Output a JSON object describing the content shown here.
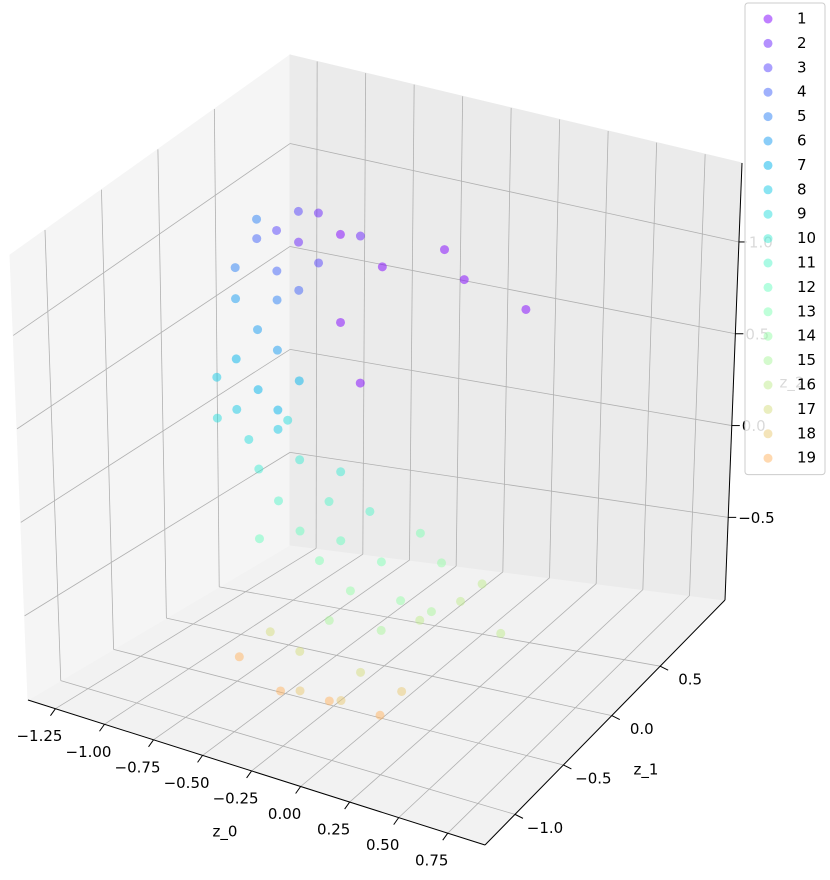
{
  "chart_data": {
    "type": "scatter3d",
    "xlabel": "z_0",
    "ylabel": "z_1",
    "zlabel": "z_2",
    "xlim": [
      -1.39,
      0.94
    ],
    "ylim": [
      -1.31,
      1.17
    ],
    "zlim": [
      -0.95,
      1.43
    ],
    "xticks": [
      {
        "value": -1.25,
        "label": "−1.25"
      },
      {
        "value": -1.0,
        "label": "−1.00"
      },
      {
        "value": -0.75,
        "label": "−0.75"
      },
      {
        "value": -0.5,
        "label": "−0.50"
      },
      {
        "value": -0.25,
        "label": "−0.25"
      },
      {
        "value": 0,
        "label": "0.00"
      },
      0.25,
      {
        "value": 0.5,
        "label": "0.50"
      },
      0.75
    ],
    "yticks": [
      {
        "value": -1.0,
        "label": "−1.0"
      },
      {
        "value": -0.5,
        "label": "−0.5"
      },
      {
        "value": 0,
        "label": "0.0"
      },
      0.5
    ],
    "zticks": [
      {
        "value": -0.5,
        "label": "−0.5"
      },
      {
        "value": 0,
        "label": "0.0"
      },
      0.5,
      {
        "value": 1.0,
        "label": "1.0"
      }
    ],
    "grid": true,
    "legend": "upper right",
    "alpha": 0.5,
    "series": [
      {
        "name": "1",
        "color": "#8000ff",
        "x": [
          -0.44,
          -0.23,
          0.08,
          0.18,
          0.49,
          -0.44,
          -0.34
        ],
        "y": [
          -0.07,
          -0.07,
          -0.07,
          -0.07,
          -0.07,
          -0.07,
          -0.07
        ],
        "z": [
          1.29,
          1.18,
          1.36,
          1.23,
          1.16,
          0.83,
          0.54
        ]
      },
      {
        "name": "2",
        "color": "#6a21fe",
        "x": [
          -0.55,
          -0.34,
          -0.65
        ],
        "y": [
          -0.07,
          -0.07,
          -0.07
        ],
        "z": [
          1.37,
          1.31,
          1.19
        ]
      },
      {
        "name": "3",
        "color": "#5542fd",
        "x": [
          -0.65,
          -0.76,
          -0.55
        ],
        "y": [
          -0.07,
          -0.07,
          -0.07
        ],
        "z": [
          1.35,
          1.22,
          1.11
        ]
      },
      {
        "name": "4",
        "color": "#4062fa",
        "x": [
          -0.86,
          -0.76,
          -0.65
        ],
        "y": [
          -0.07,
          -0.07,
          -0.07
        ],
        "z": [
          1.15,
          1.01,
          0.94
        ]
      },
      {
        "name": "5",
        "color": "#2a80f6",
        "x": [
          -0.86,
          -0.97,
          -0.76
        ],
        "y": [
          -0.07,
          -0.07,
          -0.07
        ],
        "z": [
          1.25,
          0.97,
          0.86
        ]
      },
      {
        "name": "6",
        "color": "#159bf1",
        "x": [
          -0.97,
          -0.86,
          -0.76
        ],
        "y": [
          -0.07,
          -0.07,
          -0.07
        ],
        "z": [
          0.81,
          0.68,
          0.6
        ]
      },
      {
        "name": "7",
        "color": "#00b4eb",
        "x": [
          -0.97,
          -0.86,
          -0.76,
          -0.65
        ],
        "y": [
          -0.07,
          -0.07,
          -0.07,
          -0.07
        ],
        "z": [
          0.5,
          0.37,
          0.29,
          0.47
        ]
      },
      {
        "name": "8",
        "color": "#15c9e5",
        "x": [
          -1.07,
          -0.97,
          -0.76
        ],
        "y": [
          -0.07,
          -0.07,
          -0.07
        ],
        "z": [
          0.38,
          0.24,
          0.19
        ]
      },
      {
        "name": "9",
        "color": "#2adddd",
        "x": [
          -1.07,
          -0.91,
          -0.71
        ],
        "y": [
          -0.07,
          -0.07,
          -0.07
        ],
        "z": [
          0.17,
          0.1,
          0.25
        ]
      },
      {
        "name": "10",
        "color": "#40ebd4",
        "x": [
          -0.86,
          -0.65,
          -0.44
        ],
        "y": [
          -0.07,
          -0.07,
          -0.07
        ],
        "z": [
          -0.04,
          0.06,
          0.05
        ]
      },
      {
        "name": "11",
        "color": "#55f6ca",
        "x": [
          -0.76,
          -0.5,
          -0.29
        ],
        "y": [
          -0.07,
          -0.07,
          -0.07
        ],
        "z": [
          -0.18,
          -0.12,
          -0.12
        ]
      },
      {
        "name": "12",
        "color": "#6afdc0",
        "x": [
          -0.86,
          -0.65,
          -0.44
        ],
        "y": [
          -0.07,
          -0.07,
          -0.07
        ],
        "z": [
          -0.4,
          -0.31,
          -0.31
        ]
      },
      {
        "name": "13",
        "color": "#80ffb4",
        "x": [
          -0.55,
          -0.23,
          -0.03
        ],
        "y": [
          -0.07,
          -0.07,
          -0.07
        ],
        "z": [
          -0.44,
          -0.37,
          -0.17
        ]
      },
      {
        "name": "14",
        "color": "#95fda8",
        "x": [
          -0.39,
          -0.13,
          0.08
        ],
        "y": [
          -0.07,
          -0.07,
          -0.07
        ],
        "z": [
          -0.56,
          -0.55,
          -0.3
        ]
      },
      {
        "name": "15",
        "color": "#aaf69b",
        "x": [
          -0.5,
          -0.23,
          0.03
        ],
        "y": [
          -0.07,
          -0.07,
          -0.07
        ],
        "z": [
          -0.74,
          -0.73,
          -0.57
        ]
      },
      {
        "name": "16",
        "color": "#bfeb8e",
        "x": [
          -0.03,
          0.18,
          0.39,
          0.29
        ],
        "y": [
          -0.07,
          -0.07,
          -0.07,
          -0.07
        ],
        "z": [
          -0.63,
          -0.48,
          -0.6,
          -0.36
        ]
      },
      {
        "name": "17",
        "color": "#d5dd80",
        "x": [
          -0.26,
          0.05,
          -0.41
        ],
        "y": [
          -0.81,
          -0.81,
          -0.81
        ],
        "z": [
          -0.53,
          -0.55,
          -0.47
        ]
      },
      {
        "name": "18",
        "color": "#eac974",
        "x": [
          -0.26,
          -0.05,
          0.26
        ],
        "y": [
          -0.81,
          -0.81,
          -0.81
        ],
        "z": [
          -0.74,
          -0.73,
          -0.59
        ]
      },
      {
        "name": "19",
        "color": "#ffb462",
        "x": [
          -0.11,
          0.15,
          -0.36,
          -0.57
        ],
        "y": [
          -0.81,
          -0.81,
          -0.81,
          -0.81
        ],
        "z": [
          -0.75,
          -0.75,
          -0.77,
          -0.65
        ]
      }
    ]
  }
}
